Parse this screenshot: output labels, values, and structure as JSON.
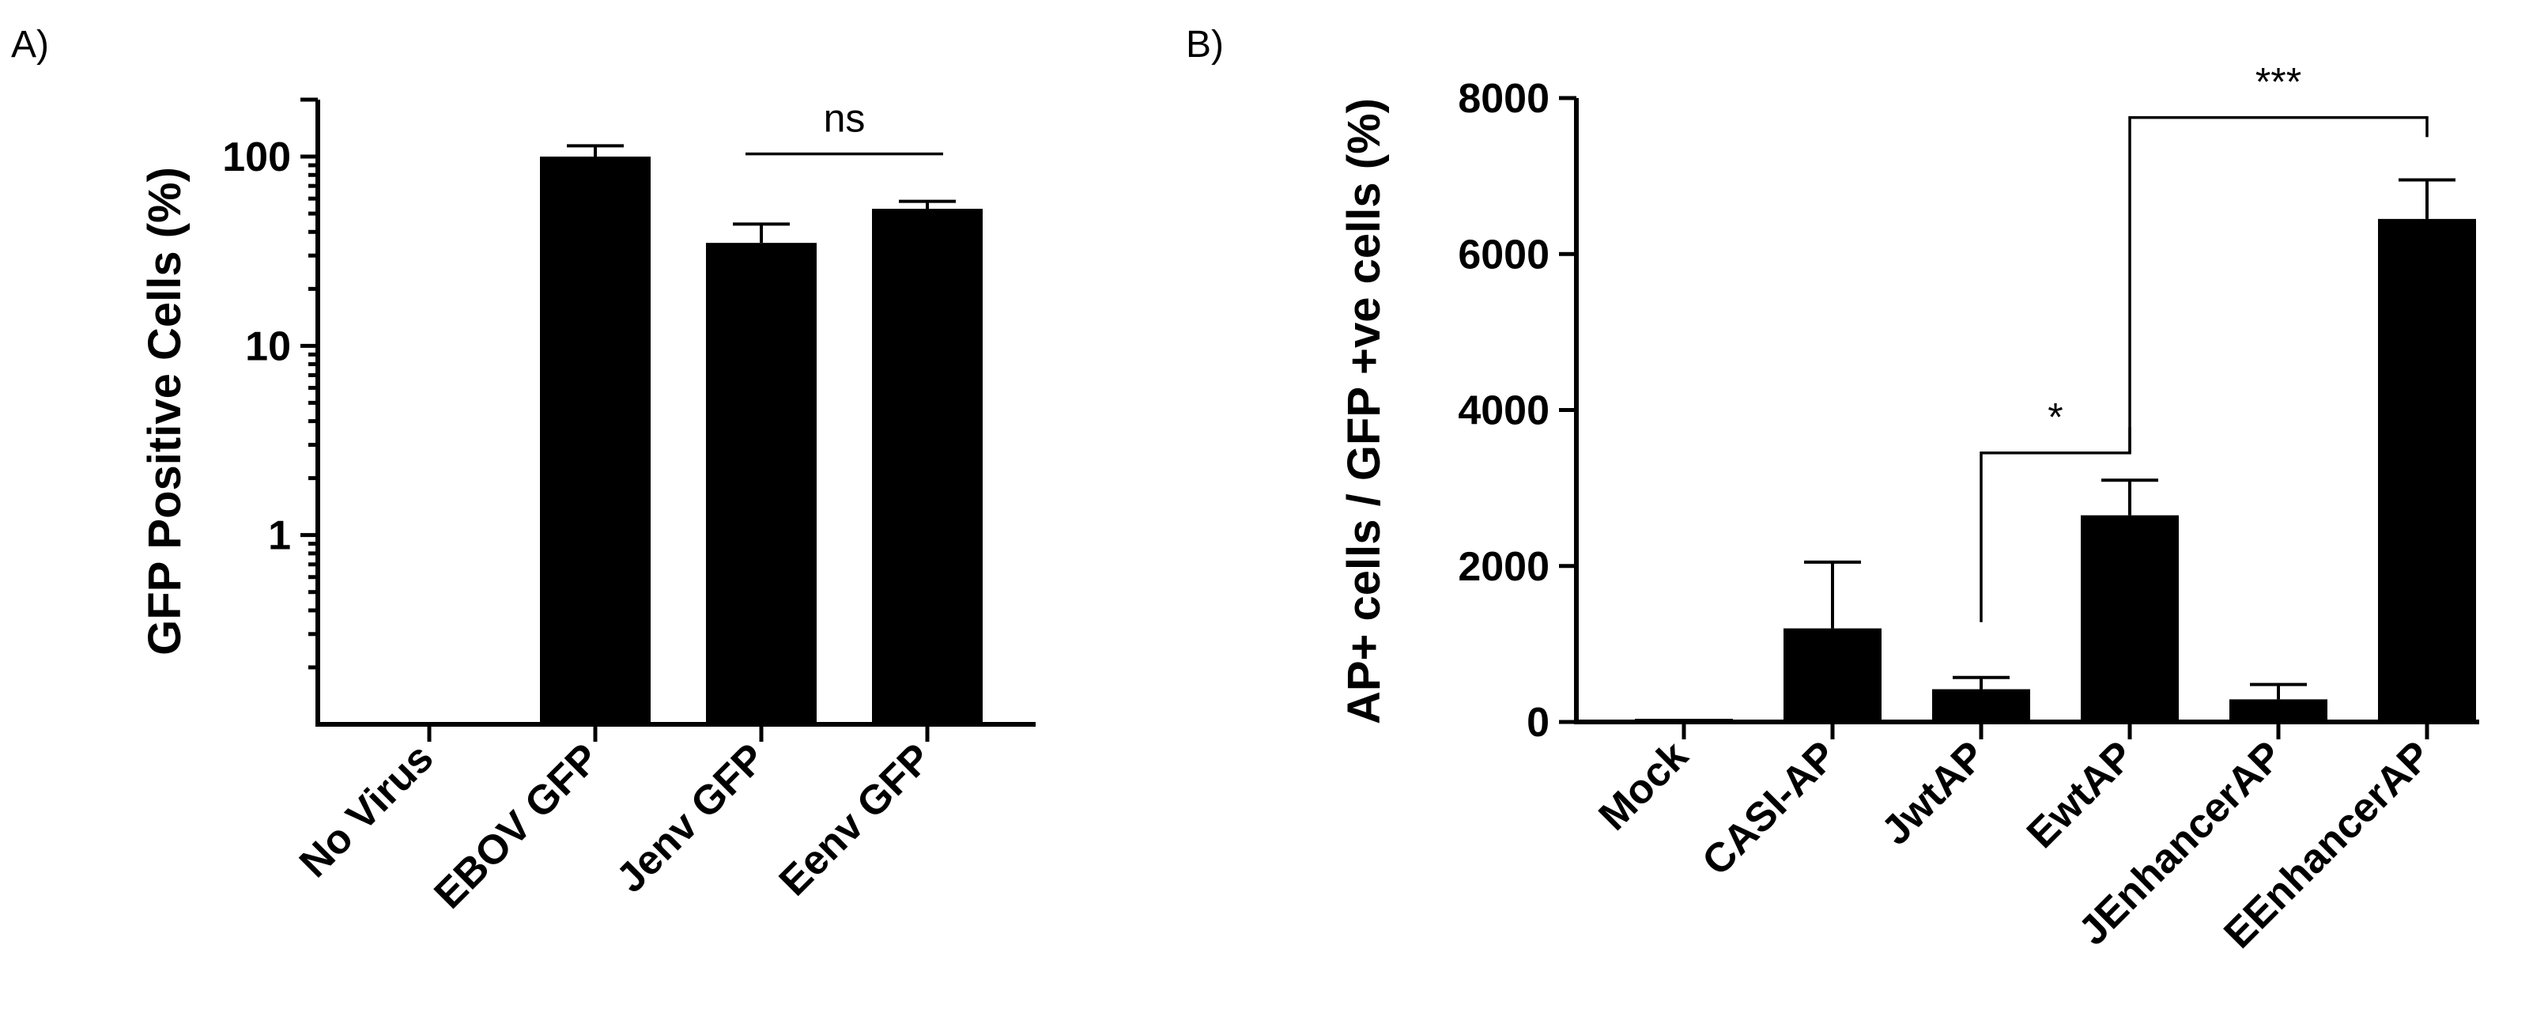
{
  "chart_data": [
    {
      "panel": "A)",
      "type": "bar",
      "ylabel": "GFP Positive Cells (%)",
      "xlabel": "",
      "yscale": "log",
      "ylim": [
        0.1,
        200
      ],
      "yticks": [
        1,
        10,
        100
      ],
      "ytick_labels": [
        "1",
        "10",
        "100"
      ],
      "categories": [
        "No Virus",
        "EBOV GFP",
        "Jenv GFP",
        "Eenv GFP"
      ],
      "values": [
        null,
        100,
        35,
        53
      ],
      "errors": [
        null,
        14,
        9,
        5
      ],
      "annotations": [
        {
          "from": "Jenv GFP",
          "to": "Eenv GFP",
          "label": "ns"
        }
      ]
    },
    {
      "panel": "B)",
      "type": "bar",
      "ylabel": "AP+ cells / GFP +ve cells (%)",
      "xlabel": "",
      "yscale": "linear",
      "ylim": [
        0,
        8000
      ],
      "yticks": [
        0,
        2000,
        4000,
        6000,
        8000
      ],
      "ytick_labels": [
        "0",
        "2000",
        "4000",
        "6000",
        "8000"
      ],
      "categories": [
        "Mock",
        "CASI-AP",
        "JwtAP",
        "EwtAP",
        "JEnhancerAP",
        "EEnhancerAP"
      ],
      "values": [
        0,
        1200,
        420,
        2650,
        290,
        6450
      ],
      "errors": [
        0,
        850,
        150,
        450,
        190,
        500
      ],
      "annotations": [
        {
          "from": "JwtAP",
          "to": "EwtAP",
          "label": "*"
        },
        {
          "from": "EwtAP",
          "to": "EEnhancerAP",
          "label": "***"
        }
      ]
    }
  ]
}
